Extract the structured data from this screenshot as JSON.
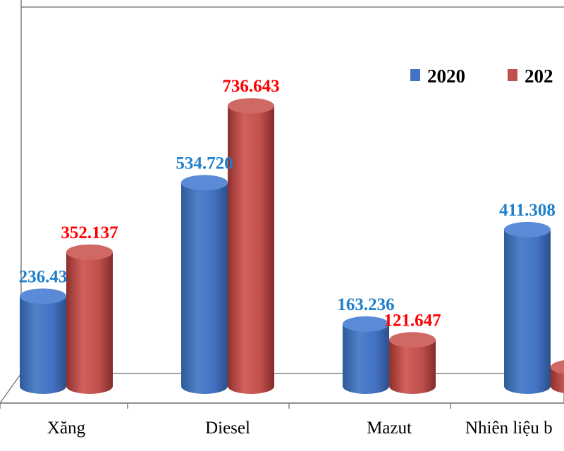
{
  "chart_data": {
    "type": "bar",
    "categories": [
      "Xăng",
      "Diesel",
      "Mazut",
      "Nhiên liệu b"
    ],
    "series": [
      {
        "name": "2020",
        "color": "#4472C4",
        "label_color": "#1F7FCC",
        "values": [
          236.43,
          534.72,
          163.236,
          411.308
        ],
        "labels": [
          "236.43",
          "534.720",
          "163.236",
          "411.308"
        ]
      },
      {
        "name": "202",
        "color": "#C0504D",
        "label_color": "#FF0000",
        "values": [
          352.137,
          736.643,
          121.647,
          50
        ],
        "labels": [
          "352.137",
          "736.643",
          "121.647",
          ""
        ]
      }
    ],
    "ylim": [
      0,
      800
    ],
    "legend_position": "top-right",
    "grid": false
  }
}
